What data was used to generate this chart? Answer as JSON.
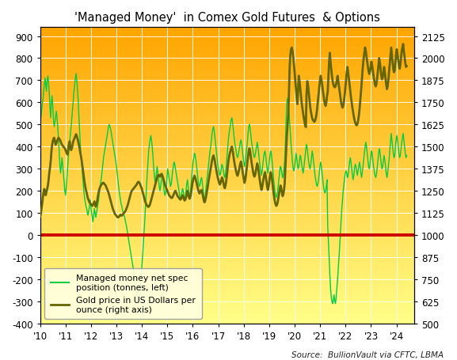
{
  "title": "'Managed Money'  in Comex Gold Futures  & Options",
  "source_text": "Source:  BullionVault via CFTC, LBMA",
  "xlabel_ticks": [
    "'10",
    "'11",
    "'12",
    "'13",
    "'14",
    "'15",
    "'16",
    "'17",
    "'18",
    "'19",
    "'20",
    "'21",
    "'22",
    "'23",
    "'24"
  ],
  "left_ylim": [
    -400,
    940
  ],
  "right_ylim": [
    500,
    2175
  ],
  "left_yticks": [
    -400,
    -300,
    -200,
    -100,
    0,
    100,
    200,
    300,
    400,
    500,
    600,
    700,
    800,
    900
  ],
  "right_yticks": [
    500,
    625,
    750,
    875,
    1000,
    1125,
    1250,
    1375,
    1500,
    1625,
    1750,
    1875,
    2000,
    2125
  ],
  "background_top": "#FFA500",
  "background_bottom": "#FFFF88",
  "zero_line_color": "#CC0000",
  "net_spec_color": "#00CC44",
  "gold_price_color": "#666600",
  "legend_net_spec": "Managed money net spec\nposition (tonnes, left)",
  "legend_gold": "Gold price in US Dollars per\nounce (right axis)",
  "net_spec_data": [
    510,
    530,
    560,
    590,
    610,
    650,
    680,
    710,
    680,
    650,
    700,
    720,
    690,
    640,
    580,
    530,
    600,
    630,
    580,
    520,
    490,
    510,
    540,
    560,
    530,
    490,
    440,
    380,
    320,
    280,
    310,
    350,
    320,
    280,
    240,
    200,
    180,
    210,
    260,
    300,
    350,
    390,
    420,
    460,
    490,
    530,
    570,
    610,
    650,
    680,
    710,
    730,
    700,
    660,
    610,
    540,
    470,
    410,
    360,
    320,
    280,
    240,
    200,
    170,
    150,
    130,
    120,
    100,
    90,
    110,
    130,
    160,
    130,
    100,
    80,
    60,
    90,
    120,
    100,
    80,
    100,
    120,
    140,
    160,
    190,
    210,
    240,
    260,
    290,
    320,
    350,
    370,
    390,
    410,
    430,
    450,
    470,
    490,
    500,
    490,
    480,
    460,
    440,
    420,
    400,
    380,
    360,
    340,
    320,
    290,
    260,
    230,
    200,
    180,
    160,
    140,
    130,
    110,
    100,
    90,
    80,
    60,
    50,
    30,
    10,
    -10,
    -30,
    -50,
    -70,
    -90,
    -110,
    -130,
    -150,
    -170,
    -200,
    -220,
    -240,
    -260,
    -280,
    -300,
    -310,
    -280,
    -240,
    -200,
    -160,
    -110,
    -60,
    -10,
    40,
    100,
    160,
    220,
    280,
    330,
    380,
    410,
    430,
    450,
    430,
    400,
    360,
    310,
    270,
    240,
    250,
    280,
    310,
    280,
    250,
    220,
    200,
    220,
    250,
    280,
    260,
    230,
    200,
    180,
    190,
    220,
    260,
    300,
    280,
    260,
    240,
    220,
    230,
    260,
    290,
    310,
    330,
    320,
    300,
    280,
    260,
    240,
    220,
    200,
    180,
    160,
    170,
    190,
    210,
    200,
    180,
    160,
    170,
    200,
    230,
    250,
    220,
    190,
    170,
    190,
    220,
    260,
    300,
    330,
    350,
    370,
    360,
    340,
    310,
    280,
    250,
    230,
    220,
    230,
    250,
    260,
    240,
    210,
    180,
    160,
    170,
    200,
    230,
    260,
    290,
    320,
    350,
    380,
    400,
    430,
    460,
    480,
    490,
    470,
    440,
    410,
    380,
    350,
    320,
    300,
    280,
    270,
    280,
    300,
    320,
    310,
    290,
    270,
    260,
    280,
    310,
    350,
    390,
    430,
    460,
    480,
    500,
    520,
    530,
    510,
    480,
    450,
    420,
    400,
    380,
    360,
    350,
    360,
    380,
    400,
    420,
    430,
    410,
    380,
    350,
    330,
    310,
    330,
    360,
    390,
    420,
    460,
    490,
    500,
    480,
    450,
    420,
    400,
    380,
    360,
    350,
    360,
    380,
    400,
    420,
    400,
    370,
    340,
    310,
    290,
    270,
    290,
    320,
    350,
    370,
    380,
    360,
    330,
    300,
    280,
    300,
    330,
    360,
    380,
    370,
    340,
    300,
    260,
    230,
    200,
    180,
    170,
    180,
    200,
    230,
    260,
    290,
    310,
    300,
    280,
    260,
    270,
    300,
    340,
    420,
    520,
    600,
    620,
    600,
    560,
    510,
    460,
    410,
    370,
    330,
    300,
    290,
    310,
    340,
    370,
    350,
    320,
    300,
    310,
    340,
    360,
    350,
    320,
    300,
    280,
    300,
    330,
    360,
    390,
    410,
    390,
    360,
    330,
    310,
    300,
    320,
    350,
    380,
    360,
    330,
    300,
    270,
    250,
    230,
    220,
    230,
    250,
    280,
    310,
    330,
    310,
    280,
    250,
    220,
    200,
    190,
    200,
    220,
    250,
    40,
    -30,
    -100,
    -180,
    -240,
    -280,
    -300,
    -310,
    -290,
    -270,
    -300,
    -310,
    -280,
    -240,
    -200,
    -150,
    -100,
    -50,
    10,
    70,
    120,
    160,
    200,
    230,
    260,
    280,
    290,
    280,
    260,
    270,
    300,
    330,
    350,
    330,
    300,
    270,
    250,
    270,
    300,
    320,
    310,
    290,
    270,
    290,
    310,
    330,
    310,
    280,
    260,
    280,
    310,
    340,
    370,
    400,
    420,
    400,
    370,
    340,
    310,
    300,
    320,
    350,
    380,
    370,
    340,
    310,
    290,
    270,
    260,
    270,
    300,
    330,
    360,
    390,
    380,
    350,
    320,
    300,
    310,
    340,
    360,
    340,
    310,
    280,
    260,
    280,
    310,
    340,
    380,
    420,
    460,
    430,
    400,
    370,
    350,
    360,
    400,
    430,
    450,
    430,
    400,
    370,
    350,
    360,
    390,
    420,
    440,
    460,
    430,
    400,
    370,
    350,
    360
  ],
  "gold_price_data": [
    1105,
    1120,
    1150,
    1180,
    1215,
    1245,
    1260,
    1240,
    1225,
    1245,
    1260,
    1280,
    1310,
    1350,
    1380,
    1415,
    1470,
    1510,
    1530,
    1545,
    1550,
    1530,
    1510,
    1520,
    1530,
    1540,
    1550,
    1545,
    1540,
    1530,
    1520,
    1510,
    1505,
    1500,
    1495,
    1490,
    1480,
    1470,
    1460,
    1455,
    1490,
    1520,
    1530,
    1490,
    1480,
    1490,
    1510,
    1530,
    1540,
    1550,
    1560,
    1570,
    1560,
    1545,
    1530,
    1510,
    1490,
    1465,
    1445,
    1420,
    1390,
    1360,
    1330,
    1300,
    1275,
    1255,
    1240,
    1220,
    1205,
    1195,
    1185,
    1180,
    1175,
    1170,
    1165,
    1170,
    1180,
    1190,
    1175,
    1160,
    1175,
    1195,
    1220,
    1240,
    1260,
    1270,
    1280,
    1285,
    1290,
    1295,
    1295,
    1290,
    1285,
    1280,
    1270,
    1260,
    1250,
    1240,
    1225,
    1210,
    1195,
    1180,
    1165,
    1150,
    1140,
    1130,
    1120,
    1115,
    1110,
    1105,
    1100,
    1100,
    1105,
    1110,
    1115,
    1110,
    1110,
    1115,
    1120,
    1125,
    1130,
    1135,
    1145,
    1155,
    1165,
    1180,
    1195,
    1210,
    1225,
    1240,
    1250,
    1255,
    1260,
    1265,
    1270,
    1275,
    1280,
    1285,
    1295,
    1300,
    1300,
    1295,
    1285,
    1275,
    1265,
    1250,
    1235,
    1220,
    1205,
    1190,
    1180,
    1170,
    1165,
    1160,
    1160,
    1165,
    1175,
    1190,
    1205,
    1220,
    1235,
    1250,
    1265,
    1280,
    1295,
    1310,
    1325,
    1335,
    1340,
    1335,
    1330,
    1340,
    1345,
    1340,
    1330,
    1315,
    1300,
    1285,
    1275,
    1265,
    1255,
    1245,
    1235,
    1225,
    1220,
    1215,
    1210,
    1210,
    1215,
    1225,
    1235,
    1245,
    1250,
    1240,
    1230,
    1220,
    1215,
    1210,
    1205,
    1200,
    1205,
    1215,
    1225,
    1215,
    1205,
    1195,
    1200,
    1215,
    1230,
    1250,
    1230,
    1215,
    1205,
    1215,
    1235,
    1260,
    1290,
    1310,
    1325,
    1335,
    1325,
    1310,
    1295,
    1275,
    1260,
    1245,
    1235,
    1240,
    1250,
    1255,
    1240,
    1220,
    1200,
    1185,
    1190,
    1210,
    1230,
    1255,
    1280,
    1305,
    1330,
    1355,
    1375,
    1400,
    1425,
    1440,
    1450,
    1435,
    1415,
    1390,
    1365,
    1345,
    1325,
    1310,
    1295,
    1285,
    1295,
    1310,
    1325,
    1315,
    1295,
    1275,
    1265,
    1280,
    1305,
    1340,
    1380,
    1415,
    1440,
    1460,
    1475,
    1490,
    1500,
    1480,
    1455,
    1425,
    1400,
    1380,
    1360,
    1345,
    1335,
    1345,
    1365,
    1385,
    1405,
    1415,
    1395,
    1365,
    1340,
    1315,
    1295,
    1310,
    1340,
    1375,
    1410,
    1445,
    1475,
    1490,
    1470,
    1440,
    1410,
    1385,
    1360,
    1340,
    1330,
    1340,
    1360,
    1385,
    1405,
    1390,
    1360,
    1330,
    1300,
    1275,
    1255,
    1270,
    1295,
    1320,
    1340,
    1355,
    1335,
    1305,
    1275,
    1255,
    1270,
    1300,
    1330,
    1355,
    1345,
    1315,
    1280,
    1245,
    1215,
    1190,
    1175,
    1165,
    1170,
    1185,
    1210,
    1235,
    1260,
    1280,
    1265,
    1240,
    1220,
    1230,
    1255,
    1295,
    1380,
    1470,
    1560,
    1620,
    1680,
    1800,
    1950,
    2020,
    2050,
    2060,
    2040,
    2010,
    1970,
    1920,
    1870,
    1820,
    1775,
    1740,
    1820,
    1900,
    1870,
    1830,
    1790,
    1750,
    1720,
    1690,
    1665,
    1640,
    1620,
    1610,
    1800,
    1870,
    1850,
    1810,
    1770,
    1730,
    1700,
    1680,
    1660,
    1650,
    1645,
    1640,
    1645,
    1660,
    1680,
    1715,
    1755,
    1800,
    1840,
    1875,
    1900,
    1880,
    1855,
    1820,
    1790,
    1760,
    1740,
    1730,
    1750,
    1785,
    1810,
    1900,
    1980,
    2030,
    1980,
    1940,
    1900,
    1870,
    1850,
    1840,
    1835,
    1840,
    1855,
    1875,
    1900,
    1870,
    1840,
    1810,
    1780,
    1750,
    1730,
    1720,
    1730,
    1755,
    1790,
    1830,
    1875,
    1920,
    1950,
    1920,
    1885,
    1850,
    1815,
    1780,
    1750,
    1720,
    1695,
    1670,
    1650,
    1635,
    1625,
    1620,
    1625,
    1645,
    1670,
    1705,
    1750,
    1800,
    1855,
    1910,
    1960,
    2000,
    2030,
    2060,
    2040,
    2010,
    1980,
    1950,
    1925,
    1910,
    1925,
    1950,
    1980,
    1960,
    1930,
    1900,
    1875,
    1850,
    1840,
    1850,
    1880,
    1920,
    1960,
    2000,
    1975,
    1940,
    1900,
    1880,
    1890,
    1920,
    1950,
    1920,
    1885,
    1850,
    1825,
    1840,
    1875,
    1920,
    1960,
    2010,
    2060,
    2020,
    1980,
    1940,
    1920,
    1930,
    1980,
    2020,
    2050,
    2020,
    1990,
    1960,
    1940,
    1960,
    2000,
    2040,
    2060,
    2080,
    2040,
    2010,
    1975,
    1950,
    1955
  ]
}
